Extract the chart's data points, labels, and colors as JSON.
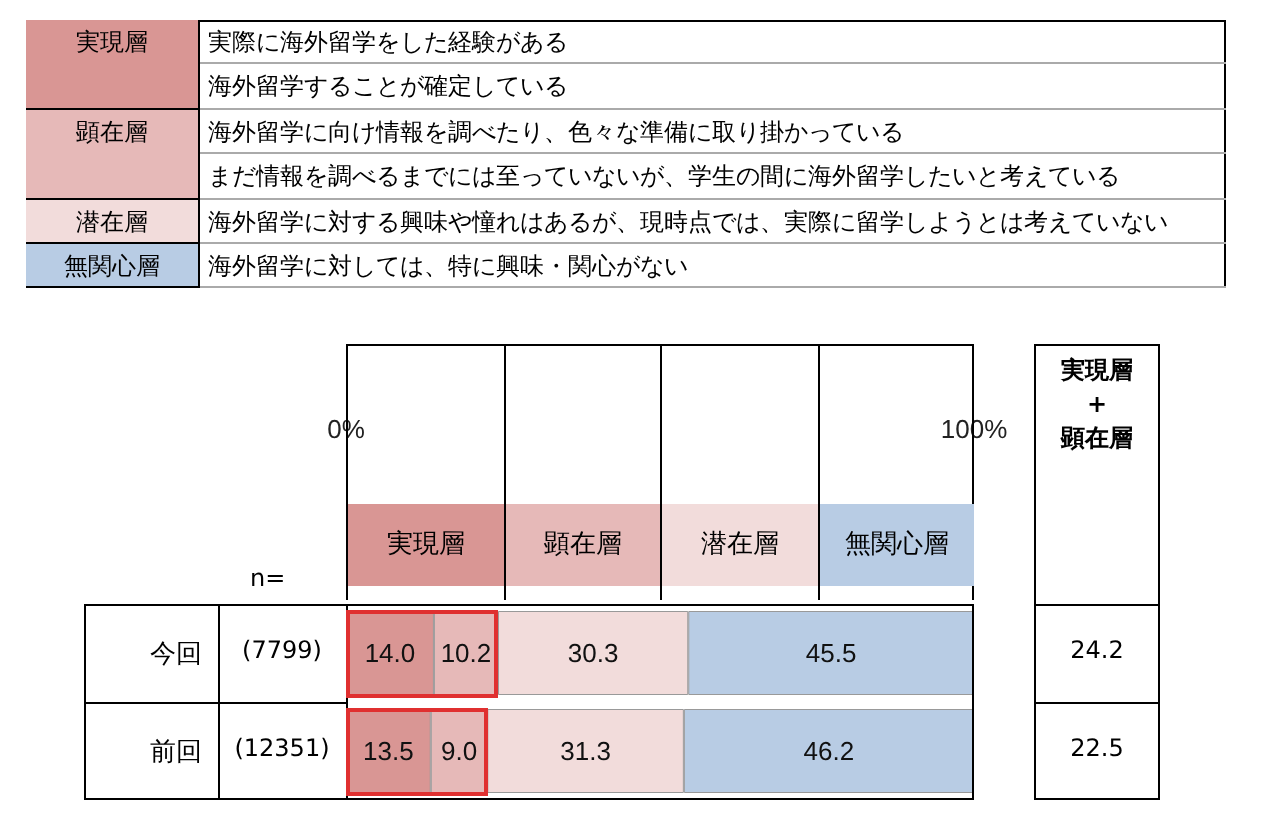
{
  "chart_data": {
    "type": "bar",
    "orientation": "horizontal",
    "stacked": true,
    "categories": [
      "今回",
      "前回"
    ],
    "series": [
      {
        "name": "実現層",
        "color": "#d99694",
        "values": [
          14.0,
          13.5
        ],
        "value_labels": [
          "14.0",
          "13.5"
        ]
      },
      {
        "name": "顕在層",
        "color": "#e6b9b8",
        "values": [
          10.2,
          9.0
        ],
        "value_labels": [
          "10.2",
          "9.0"
        ]
      },
      {
        "name": "潜在層",
        "color": "#f2dcdb",
        "values": [
          30.3,
          31.3
        ],
        "value_labels": [
          "30.3",
          "31.3"
        ]
      },
      {
        "name": "無関心層",
        "color": "#b8cce4",
        "values": [
          45.5,
          46.2
        ],
        "value_labels": [
          "45.5",
          "46.2"
        ]
      }
    ],
    "xlim": [
      0,
      100
    ],
    "xticks": [
      {
        "value": 0,
        "label": "0%"
      },
      {
        "value": 100,
        "label": "100%"
      }
    ],
    "grid": false,
    "legend": "top",
    "annotations": [
      "実際に海外留学をした経験がある",
      "海外留学することが確定している",
      "海外留学に向け情報を調べたり、色々な準備に取り掛かっている",
      "まだ情報を調べるまでには至っていないが、学生の間に海外留学したいと考えている",
      "海外留学に対する興味や憧れはあるが、現時点では、実際に留学しようとは考えていない",
      "海外留学に対しては、特に興味・関心がない",
      "n=",
      "(7799)",
      "(12351)",
      "実現層\n+\n顕在層",
      "24.2",
      "22.5"
    ]
  }
}
